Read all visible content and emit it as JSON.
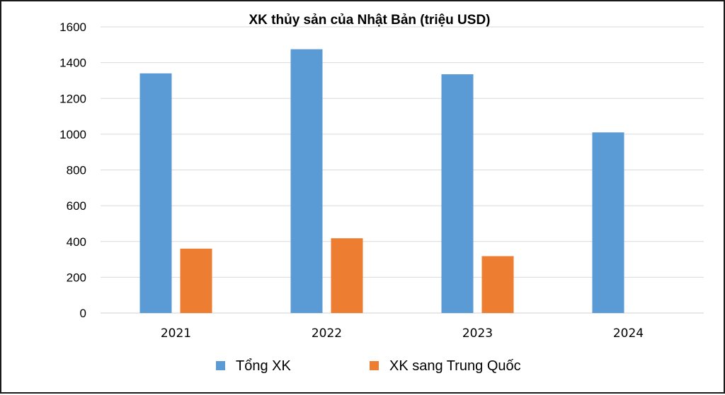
{
  "chart_data": {
    "type": "bar",
    "title": "XK thủy sản của Nhật Bản (triệu USD)",
    "categories": [
      "2021",
      "2022",
      "2023",
      "2024"
    ],
    "series": [
      {
        "name": "Tổng XK",
        "values": [
          1340,
          1475,
          1335,
          1010
        ],
        "color": "#5b9bd5"
      },
      {
        "name": "XK sang Trung Quốc",
        "values": [
          360,
          418,
          318,
          0
        ],
        "color": "#ed7d31"
      }
    ],
    "xlabel": "",
    "ylabel": "",
    "ylim": [
      0,
      1600
    ],
    "yticks": [
      0,
      200,
      400,
      600,
      800,
      1000,
      1200,
      1400,
      1600
    ],
    "grid": true,
    "legend_position": "bottom"
  }
}
